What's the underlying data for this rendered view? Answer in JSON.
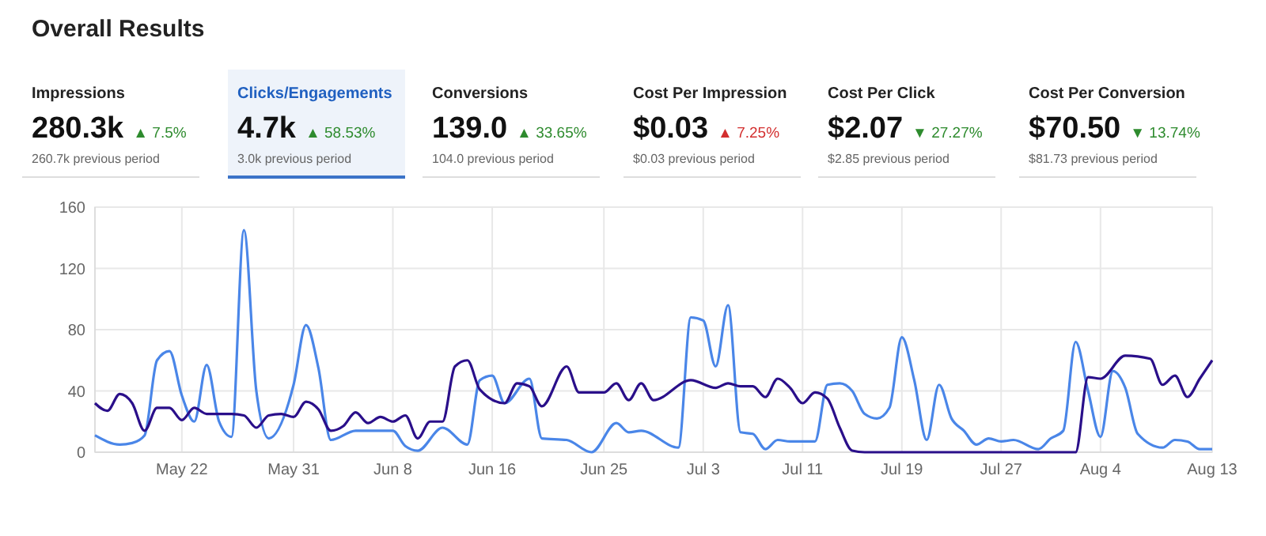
{
  "chart_data": [
    {
      "type": "other",
      "title": "Overall Results",
      "annotations": [
        "Impressions",
        "280.3k",
        "▲ 7.5%",
        "260.7k previous period",
        "Clicks/Engagements",
        "4.7k",
        "▲ 58.53%",
        "3.0k previous period",
        "Conversions",
        "139.0",
        "▲ 33.65%",
        "104.0 previous period",
        "Cost Per Impression",
        "$0.03",
        "▲ 7.25%",
        "$0.03 previous period",
        "Cost Per Click",
        "$2.07",
        "▼ 27.27%",
        "$2.85 previous period",
        "Cost Per Conversion",
        "$70.50",
        "▼ 13.74%",
        "$81.73 previous period"
      ],
      "colors": [
        "#2e8b2e",
        "#2e8b2e",
        "#2e8b2e",
        "#d32f2f",
        "#2e8b2e",
        "#2e8b2e"
      ]
    },
    {
      "type": "line",
      "xlim": [
        "--05-15",
        "--08-13"
      ],
      "xticks": [
        {
          "value": "--05-22",
          "label": "May 22"
        },
        {
          "value": "--05-31",
          "label": "May 31"
        },
        {
          "value": "--06-08",
          "label": "Jun 8"
        },
        {
          "value": "--06-16",
          "label": "Jun 16"
        },
        {
          "value": "--06-25",
          "label": "Jun 25"
        },
        {
          "value": "--07-03",
          "label": "Jul 3"
        },
        {
          "value": "--07-11",
          "label": "Jul 11"
        },
        {
          "value": "--07-19",
          "label": "Jul 19"
        },
        {
          "value": "--07-27",
          "label": "Jul 27"
        },
        {
          "value": "--08-04",
          "label": "Aug 4"
        },
        {
          "value": "--08-13",
          "label": "Aug 13"
        }
      ],
      "ylim": [
        0,
        160
      ],
      "yticks": [
        0,
        40,
        80,
        120,
        160
      ],
      "grid": true,
      "marker": "none",
      "line_style": "solid",
      "series": [
        {
          "color": "#4a86e8",
          "x": [
            "--05-15",
            "--05-17",
            "--05-18",
            "--05-19",
            "--05-20",
            "--05-21",
            "--05-22",
            "--05-23",
            "--05-24",
            "--05-25",
            "--05-26",
            "--05-27",
            "--05-28",
            "--05-29",
            "--05-31",
            "--06-01",
            "--06-02",
            "--06-03",
            "--06-05",
            "--06-08",
            "--06-09",
            "--06-10",
            "--06-12",
            "--06-14",
            "--06-15",
            "--06-16",
            "--06-17",
            "--06-19",
            "--06-20",
            "--06-22",
            "--06-24",
            "--06-26",
            "--06-27",
            "--06-28",
            "--07-01",
            "--07-02",
            "--07-03",
            "--07-04",
            "--07-05",
            "--07-06",
            "--07-07",
            "--07-08",
            "--07-09",
            "--07-10",
            "--07-12",
            "--07-13",
            "--07-14",
            "--07-15",
            "--07-16",
            "--07-17",
            "--07-18",
            "--07-19",
            "--07-20",
            "--07-21",
            "--07-22",
            "--07-23",
            "--07-24",
            "--07-25",
            "--07-26",
            "--07-27",
            "--07-28",
            "--07-30",
            "--07-31",
            "--08-01",
            "--08-02",
            "--08-03",
            "--08-04",
            "--08-05",
            "--08-06",
            "--08-07",
            "--08-09",
            "--08-10",
            "--08-11",
            "--08-12",
            "--08-13"
          ],
          "values": [
            11,
            5,
            6,
            11,
            60,
            66,
            37,
            20,
            57,
            20,
            10,
            145,
            40,
            9,
            44,
            83,
            55,
            8,
            14,
            14,
            4,
            1,
            16,
            5,
            47,
            50,
            32,
            48,
            9,
            8,
            0,
            19,
            13,
            14,
            3,
            88,
            86,
            56,
            96,
            13,
            12,
            2,
            8,
            7,
            7,
            44,
            45,
            40,
            25,
            22,
            29,
            75,
            47,
            8,
            44,
            22,
            14,
            5,
            9,
            7,
            8,
            2,
            9,
            14,
            72,
            40,
            10,
            53,
            42,
            12,
            3,
            8,
            7,
            2,
            2
          ]
        },
        {
          "color": "#2a0f8a",
          "x": [
            "--05-15",
            "--05-16",
            "--05-17",
            "--05-18",
            "--05-19",
            "--05-20",
            "--05-21",
            "--05-22",
            "--05-23",
            "--05-24",
            "--05-26",
            "--05-27",
            "--05-28",
            "--05-29",
            "--05-30",
            "--05-31",
            "--06-01",
            "--06-02",
            "--06-03",
            "--06-04",
            "--06-05",
            "--06-06",
            "--06-07",
            "--06-08",
            "--06-09",
            "--06-10",
            "--06-11",
            "--06-12",
            "--06-13",
            "--06-14",
            "--06-15",
            "--06-17",
            "--06-18",
            "--06-19",
            "--06-20",
            "--06-22",
            "--06-23",
            "--06-25",
            "--06-26",
            "--06-27",
            "--06-28",
            "--06-29",
            "--07-02",
            "--07-04",
            "--07-05",
            "--07-06",
            "--07-07",
            "--07-08",
            "--07-09",
            "--07-10",
            "--07-11",
            "--07-12",
            "--07-13",
            "--07-14",
            "--07-15",
            "--07-16",
            "--08-02",
            "--08-03",
            "--08-04",
            "--08-06",
            "--08-08",
            "--08-09",
            "--08-10",
            "--08-11",
            "--08-12",
            "--08-13"
          ],
          "values": [
            32,
            27,
            38,
            32,
            14,
            29,
            29,
            21,
            29,
            25,
            25,
            24,
            16,
            24,
            25,
            23,
            33,
            28,
            14,
            17,
            26,
            19,
            23,
            20,
            24,
            9,
            20,
            20,
            56,
            60,
            41,
            32,
            45,
            43,
            30,
            56,
            39,
            39,
            45,
            34,
            45,
            34,
            47,
            42,
            45,
            43,
            43,
            36,
            48,
            42,
            32,
            39,
            35,
            16,
            1,
            0,
            0,
            49,
            48,
            63,
            61,
            44,
            50,
            36,
            48,
            60
          ]
        }
      ]
    }
  ]
}
